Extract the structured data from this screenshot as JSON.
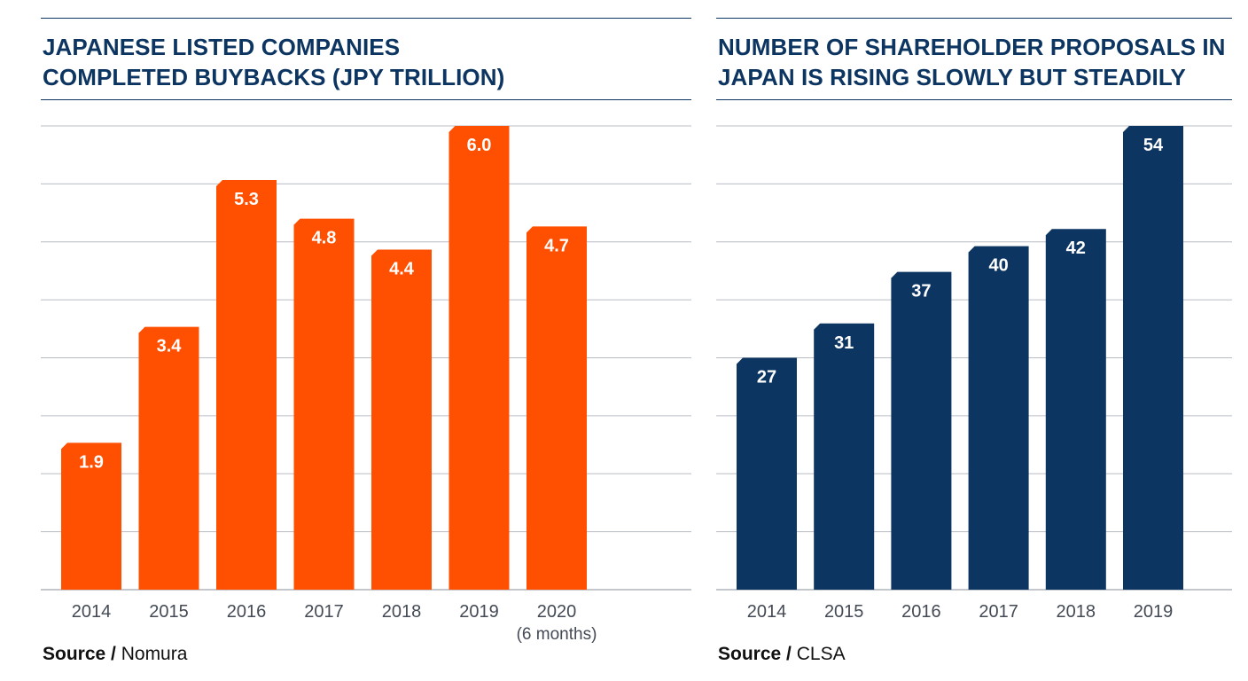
{
  "chart_data": [
    {
      "type": "bar",
      "title_lines": [
        "JAPANESE LISTED COMPANIES",
        "COMPLETED BUYBACKS (JPY TRILLION)"
      ],
      "categories": [
        "2014",
        "2015",
        "2016",
        "2017",
        "2018",
        "2019",
        "2020"
      ],
      "category_sublabels": [
        "",
        "",
        "",
        "",
        "",
        "",
        "(6 months)"
      ],
      "values": [
        1.9,
        3.4,
        5.3,
        4.8,
        4.4,
        6.0,
        4.7
      ],
      "value_labels": [
        "1.9",
        "3.4",
        "5.3",
        "4.8",
        "4.4",
        "6.0",
        "4.7"
      ],
      "ylim": [
        0,
        6.0
      ],
      "grid": true,
      "bar_color": "#ff4f00",
      "source_label": "Source /",
      "source_name": "Nomura"
    },
    {
      "type": "bar",
      "title_lines": [
        "NUMBER OF SHAREHOLDER PROPOSALS IN",
        "JAPAN IS RISING SLOWLY BUT STEADILY"
      ],
      "categories": [
        "2014",
        "2015",
        "2016",
        "2017",
        "2018",
        "2019"
      ],
      "category_sublabels": [
        "",
        "",
        "",
        "",
        "",
        ""
      ],
      "values": [
        27,
        31,
        37,
        40,
        42,
        54
      ],
      "value_labels": [
        "27",
        "31",
        "37",
        "40",
        "42",
        "54"
      ],
      "ylim": [
        0,
        54
      ],
      "grid": true,
      "bar_color": "#0d3561",
      "source_label": "Source /",
      "source_name": "CLSA"
    }
  ]
}
